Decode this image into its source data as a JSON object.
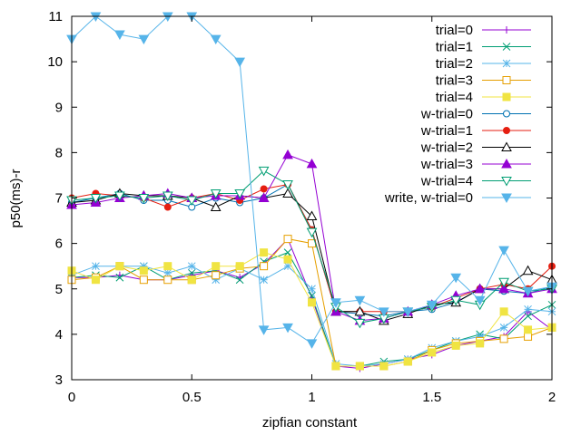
{
  "chart_data": {
    "type": "line",
    "xlabel": "zipfian constant",
    "ylabel": "p50(ms)-r",
    "xlim": [
      0,
      2
    ],
    "ylim": [
      3,
      11
    ],
    "xticks": [
      0,
      0.5,
      1,
      1.5,
      2
    ],
    "xtick_labels": [
      "0",
      "0.5",
      "1",
      "1.5",
      "2"
    ],
    "yticks": [
      3,
      4,
      5,
      6,
      7,
      8,
      9,
      10,
      11
    ],
    "ytick_labels": [
      "3",
      "4",
      "5",
      "6",
      "7",
      "8",
      "9",
      "10",
      "11"
    ],
    "grid": false,
    "legend_position": "top-right",
    "x": [
      0,
      0.1,
      0.2,
      0.3,
      0.4,
      0.5,
      0.6,
      0.7,
      0.8,
      0.9,
      1.0,
      1.1,
      1.2,
      1.3,
      1.4,
      1.5,
      1.6,
      1.7,
      1.8,
      1.9,
      2.0
    ],
    "series": [
      {
        "name": "trial=0",
        "color": "#9400d3",
        "marker": "plus",
        "values": [
          5.25,
          5.25,
          5.3,
          5.2,
          5.2,
          5.3,
          5.4,
          5.25,
          5.55,
          6.1,
          4.8,
          3.3,
          3.25,
          3.35,
          3.45,
          3.55,
          3.75,
          3.85,
          3.95,
          4.5,
          4.1
        ]
      },
      {
        "name": "trial=1",
        "color": "#009e73",
        "marker": "x",
        "values": [
          5.25,
          5.3,
          5.25,
          5.5,
          5.2,
          5.35,
          5.4,
          5.2,
          5.6,
          5.8,
          4.85,
          3.3,
          3.3,
          3.4,
          3.45,
          3.65,
          3.85,
          4.0,
          3.9,
          4.4,
          4.65
        ]
      },
      {
        "name": "trial=2",
        "color": "#56b4e9",
        "marker": "star",
        "values": [
          5.3,
          5.5,
          5.5,
          5.5,
          5.35,
          5.5,
          5.2,
          5.45,
          5.2,
          5.5,
          5.0,
          3.35,
          3.3,
          3.35,
          3.45,
          3.7,
          3.85,
          3.95,
          4.15,
          4.55,
          4.5
        ]
      },
      {
        "name": "trial=3",
        "color": "#e69f00",
        "marker": "open-square",
        "values": [
          5.2,
          5.25,
          5.5,
          5.2,
          5.2,
          5.2,
          5.3,
          5.45,
          5.5,
          6.1,
          6.0,
          3.3,
          3.3,
          3.3,
          3.4,
          3.65,
          3.8,
          3.85,
          3.9,
          3.95,
          4.15
        ]
      },
      {
        "name": "trial=4",
        "color": "#f0e442",
        "marker": "filled-square",
        "values": [
          5.4,
          5.2,
          5.5,
          5.4,
          5.5,
          5.2,
          5.5,
          5.5,
          5.8,
          5.65,
          4.7,
          3.3,
          3.3,
          3.3,
          3.4,
          3.6,
          3.75,
          3.8,
          4.5,
          4.1,
          4.15
        ]
      },
      {
        "name": "w-trial=0",
        "color": "#0072b2",
        "marker": "open-circle",
        "values": [
          6.9,
          7.0,
          7.1,
          6.95,
          6.95,
          6.8,
          7.0,
          6.9,
          7.0,
          7.3,
          6.3,
          4.5,
          4.45,
          4.4,
          4.5,
          4.55,
          4.7,
          5.0,
          4.95,
          4.9,
          5.05
        ]
      },
      {
        "name": "w-trial=1",
        "color": "#e51e10",
        "marker": "filled-circle",
        "values": [
          7.0,
          7.1,
          7.05,
          7.0,
          6.8,
          7.0,
          7.1,
          6.95,
          7.2,
          7.3,
          6.3,
          4.5,
          4.5,
          4.5,
          4.5,
          4.6,
          4.8,
          5.0,
          5.1,
          5.0,
          5.5
        ]
      },
      {
        "name": "w-trial=2",
        "color": "#000000",
        "marker": "open-triangle",
        "values": [
          6.9,
          6.95,
          7.1,
          7.05,
          7.05,
          7.0,
          6.8,
          7.05,
          7.0,
          7.1,
          6.6,
          4.5,
          4.5,
          4.3,
          4.45,
          4.65,
          4.7,
          5.0,
          5.0,
          5.4,
          5.2
        ]
      },
      {
        "name": "w-trial=3",
        "color": "#9400d3",
        "marker": "filled-triangle",
        "values": [
          6.85,
          6.9,
          7.0,
          7.05,
          7.1,
          7.0,
          7.05,
          7.05,
          7.0,
          7.95,
          7.75,
          4.5,
          4.3,
          4.35,
          4.5,
          4.65,
          4.85,
          5.0,
          5.0,
          4.9,
          5.0
        ]
      },
      {
        "name": "w-trial=4",
        "color": "#009e73",
        "marker": "open-inv-triangle",
        "values": [
          6.95,
          7.0,
          7.05,
          7.0,
          7.05,
          6.95,
          7.1,
          7.1,
          7.6,
          7.3,
          6.25,
          4.6,
          4.25,
          4.35,
          4.5,
          4.6,
          4.75,
          4.65,
          5.15,
          4.95,
          5.0
        ]
      },
      {
        "name": "write, w-trial=0",
        "color": "#56b4e9",
        "marker": "filled-inv-triangle",
        "values": [
          10.5,
          11.0,
          10.6,
          10.5,
          11.0,
          11.0,
          10.5,
          10.0,
          4.1,
          4.15,
          3.8,
          4.7,
          4.75,
          4.5,
          4.5,
          4.65,
          5.25,
          4.75,
          5.85,
          4.95,
          5.05
        ]
      }
    ]
  }
}
